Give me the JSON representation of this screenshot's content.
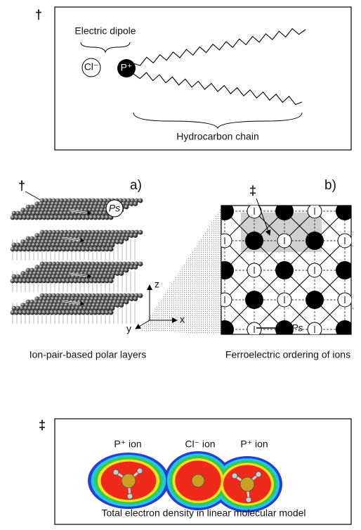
{
  "panel_top": {
    "dagger": "†",
    "dipole_label": "Electric dipole",
    "anion": "Cl⁻",
    "cation": "P⁺",
    "chain_label": "Hydrocarbon chain"
  },
  "panel_middle": {
    "dagger": "†",
    "label_a": "a)",
    "polarization_a": "Ps",
    "label_b": "b)",
    "double_dagger": "‡",
    "axis_z": "z",
    "axis_x": "x",
    "axis_y": "y",
    "polarization_b": "Ps",
    "caption_a": "Ion-pair-based polar layers",
    "caption_b": "Ferroelectric ordering of ions"
  },
  "panel_bottom": {
    "double_dagger": "‡",
    "ion_1": "P⁺ ion",
    "ion_2": "Cl⁻ ion",
    "ion_3": "P⁺ ion",
    "caption": "Total electron density in linear molecular model"
  }
}
